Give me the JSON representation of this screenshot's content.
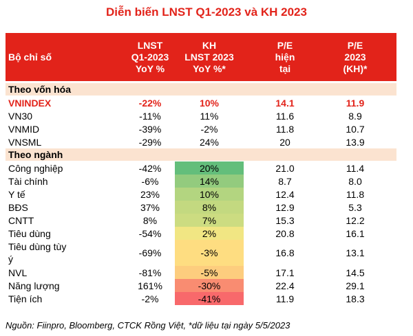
{
  "title": "Diễn biến LNST Q1-2023 và KH 2023",
  "headers": [
    "Bộ chỉ số",
    "LNST\nQ1-2023\nYoY %",
    "KH\nLNST 2023\nYoY %*",
    "P/E\nhiện\ntại",
    "P/E\n2023\n(KH)*"
  ],
  "sections": [
    {
      "label": "Theo vốn hóa",
      "rows": [
        {
          "name": "VNINDEX",
          "lnst_q1": "-22%",
          "kh": "10%",
          "pe_now": "14.1",
          "pe_2023": "11.9",
          "highlight": true
        },
        {
          "name": "VN30",
          "lnst_q1": "-11%",
          "kh": "11%",
          "pe_now": "11.6",
          "pe_2023": "8.9"
        },
        {
          "name": "VNMID",
          "lnst_q1": "-39%",
          "kh": "-2%",
          "pe_now": "11.8",
          "pe_2023": "10.7"
        },
        {
          "name": "VNSML",
          "lnst_q1": "-29%",
          "kh": "24%",
          "pe_now": "20",
          "pe_2023": "13.9"
        }
      ]
    },
    {
      "label": "Theo ngành",
      "rows": [
        {
          "name": "Công nghiệp",
          "lnst_q1": "-42%",
          "kh": "20%",
          "pe_now": "21.0",
          "pe_2023": "11.4",
          "heat": "#63be7b"
        },
        {
          "name": "Tài chính",
          "lnst_q1": "-6%",
          "kh": "14%",
          "pe_now": "8.7",
          "pe_2023": "8.0",
          "heat": "#93cb7e"
        },
        {
          "name": "Y tế",
          "lnst_q1": "23%",
          "kh": "10%",
          "pe_now": "12.4",
          "pe_2023": "11.8",
          "heat": "#b3d580"
        },
        {
          "name": "BĐS",
          "lnst_q1": "37%",
          "kh": "8%",
          "pe_now": "12.9",
          "pe_2023": "5.3",
          "heat": "#c3d980"
        },
        {
          "name": "CNTT",
          "lnst_q1": "8%",
          "kh": "7%",
          "pe_now": "15.3",
          "pe_2023": "12.2",
          "heat": "#ccdc81"
        },
        {
          "name": "Tiêu dùng",
          "lnst_q1": "-54%",
          "kh": "2%",
          "pe_now": "20.8",
          "pe_2023": "16.1",
          "heat": "#f1e683"
        },
        {
          "name": "Tiêu dùng tùy\ný",
          "lnst_q1": "-69%",
          "kh": "-3%",
          "pe_now": "16.8",
          "pe_2023": "13.1",
          "heat": "#fedd81",
          "tall": true
        },
        {
          "name": "NVL",
          "lnst_q1": "-81%",
          "kh": "-5%",
          "pe_now": "17.1",
          "pe_2023": "14.5",
          "heat": "#fdcd7e"
        },
        {
          "name": "Năng lượng",
          "lnst_q1": "161%",
          "kh": "-30%",
          "pe_now": "22.4",
          "pe_2023": "29.1",
          "heat": "#f98c71"
        },
        {
          "name": "Tiện ích",
          "lnst_q1": "-2%",
          "kh": "-41%",
          "pe_now": "11.9",
          "pe_2023": "18.3",
          "heat": "#f8696b"
        }
      ]
    }
  ],
  "source": "Nguồn: Fiinpro, Bloomberg, CTCK Rồng Việt, *dữ liệu tại ngày 5/5/2023",
  "chart_data": {
    "type": "table",
    "title": "Diễn biến LNST Q1-2023 và KH 2023",
    "columns": [
      "Bộ chỉ số",
      "LNST Q1-2023 YoY %",
      "KH LNST 2023 YoY %*",
      "P/E hiện tại",
      "P/E 2023 (KH)*"
    ],
    "rows": [
      [
        "VNINDEX",
        -22,
        10,
        14.1,
        11.9
      ],
      [
        "VN30",
        -11,
        11,
        11.6,
        8.9
      ],
      [
        "VNMID",
        -39,
        -2,
        11.8,
        10.7
      ],
      [
        "VNSML",
        -29,
        24,
        20,
        13.9
      ],
      [
        "Công nghiệp",
        -42,
        20,
        21.0,
        11.4
      ],
      [
        "Tài chính",
        -6,
        14,
        8.7,
        8.0
      ],
      [
        "Y tế",
        23,
        10,
        12.4,
        11.8
      ],
      [
        "BĐS",
        37,
        8,
        12.9,
        5.3
      ],
      [
        "CNTT",
        8,
        7,
        15.3,
        12.2
      ],
      [
        "Tiêu dùng",
        -54,
        2,
        20.8,
        16.1
      ],
      [
        "Tiêu dùng tùy ý",
        -69,
        -3,
        16.8,
        13.1
      ],
      [
        "NVL",
        -81,
        -5,
        17.1,
        14.5
      ],
      [
        "Năng lượng",
        161,
        -30,
        22.4,
        29.1
      ],
      [
        "Tiện ích",
        -2,
        -41,
        11.9,
        18.3
      ]
    ]
  }
}
